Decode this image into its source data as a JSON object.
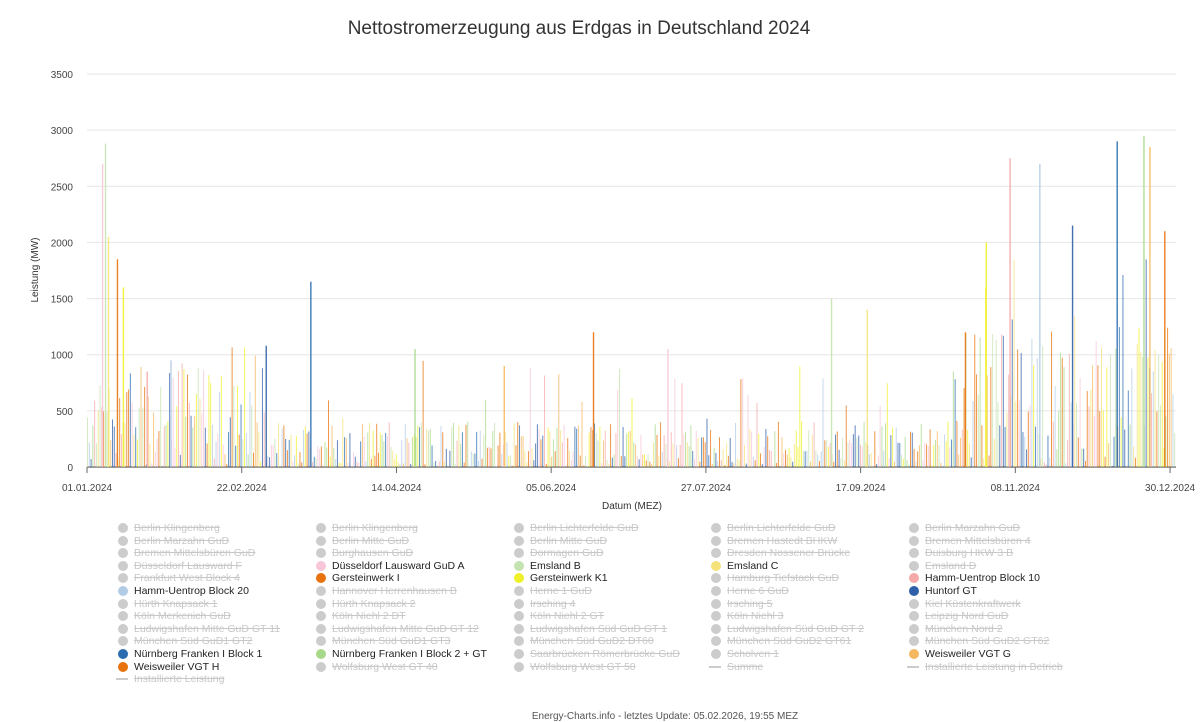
{
  "chart_data": {
    "type": "area",
    "title": "Nettostromerzeugung aus Erdgas in Deutschland 2024",
    "xlabel": "Datum (MEZ)",
    "ylabel": "Leistung (MW)",
    "ylim": [
      0,
      3500
    ],
    "yticks": [
      0,
      500,
      1000,
      1500,
      2000,
      2500,
      3000,
      3500
    ],
    "xlim_day": [
      0,
      366
    ],
    "xticks": [
      {
        "day": 0,
        "label": "01.01.2024"
      },
      {
        "day": 52,
        "label": "22.02.2024"
      },
      {
        "day": 104,
        "label": "14.04.2024"
      },
      {
        "day": 156,
        "label": "05.06.2024"
      },
      {
        "day": 208,
        "label": "27.07.2024"
      },
      {
        "day": 260,
        "label": "17.09.2024"
      },
      {
        "day": 312,
        "label": "08.11.2024"
      },
      {
        "day": 364,
        "label": "30.12.2024"
      }
    ],
    "grid": true,
    "series_colors": {
      "Düsseldorf Lausward GuD A": "#f7c6d9",
      "Emsland B": "#c5e3b0",
      "Emsland C": "#f6e27a",
      "Gersteinwerk I": "#e8730c",
      "Gersteinwerk K1": "#f0f02a",
      "Hamm-Uentrop Block 10": "#f5a9a9",
      "Hamm-Uentrop Block 20": "#b3cce6",
      "Huntorf GT": "#2f5fa8",
      "Nürnberg Franken I Block 1": "#2b6cb0",
      "Nürnberg Franken I Block 2 + GT": "#a8d98a",
      "Weisweiler VGT G": "#f5b860",
      "Weisweiler VGT H": "#e8730c"
    },
    "peaks_total_mw": [
      {
        "day": 5,
        "value": 2700
      },
      {
        "day": 6,
        "value": 2880
      },
      {
        "day": 7,
        "value": 2050
      },
      {
        "day": 10,
        "value": 1850
      },
      {
        "day": 12,
        "value": 1600
      },
      {
        "day": 20,
        "value": 850
      },
      {
        "day": 28,
        "value": 950
      },
      {
        "day": 60,
        "value": 1080
      },
      {
        "day": 75,
        "value": 1650
      },
      {
        "day": 110,
        "value": 1050
      },
      {
        "day": 140,
        "value": 900
      },
      {
        "day": 170,
        "value": 1200
      },
      {
        "day": 195,
        "value": 1050
      },
      {
        "day": 250,
        "value": 1500
      },
      {
        "day": 262,
        "value": 1400
      },
      {
        "day": 295,
        "value": 1200
      },
      {
        "day": 302,
        "value": 2000
      },
      {
        "day": 310,
        "value": 2750
      },
      {
        "day": 320,
        "value": 2700
      },
      {
        "day": 331,
        "value": 2150
      },
      {
        "day": 346,
        "value": 2900
      },
      {
        "day": 355,
        "value": 2950
      },
      {
        "day": 357,
        "value": 2850
      },
      {
        "day": 362,
        "value": 2100
      }
    ]
  },
  "legend": [
    {
      "label": "Berlin Klingenberg",
      "color": "#cccccc",
      "active": false,
      "kind": "dot"
    },
    {
      "label": "Berlin Klingenberg",
      "color": "#cccccc",
      "active": false,
      "kind": "dot"
    },
    {
      "label": "Berlin Lichterfelde GuD",
      "color": "#cccccc",
      "active": false,
      "kind": "dot"
    },
    {
      "label": "Berlin Lichterfelde GuD",
      "color": "#cccccc",
      "active": false,
      "kind": "dot"
    },
    {
      "label": "Berlin Marzahn GuD",
      "color": "#cccccc",
      "active": false,
      "kind": "dot"
    },
    {
      "label": "Berlin Marzahn GuD",
      "color": "#cccccc",
      "active": false,
      "kind": "dot"
    },
    {
      "label": "Berlin Mitte GuD",
      "color": "#cccccc",
      "active": false,
      "kind": "dot"
    },
    {
      "label": "Berlin Mitte GuD",
      "color": "#cccccc",
      "active": false,
      "kind": "dot"
    },
    {
      "label": "Bremen Hastedt BHKW",
      "color": "#cccccc",
      "active": false,
      "kind": "dot"
    },
    {
      "label": "Bremen Mittelsbüren 4",
      "color": "#cccccc",
      "active": false,
      "kind": "dot"
    },
    {
      "label": "Bremen Mittelsbüren GuD",
      "color": "#cccccc",
      "active": false,
      "kind": "dot"
    },
    {
      "label": "Burghausen GuD",
      "color": "#cccccc",
      "active": false,
      "kind": "dot"
    },
    {
      "label": "Dormagen GuD",
      "color": "#cccccc",
      "active": false,
      "kind": "dot"
    },
    {
      "label": "Dresden Nossener Brücke",
      "color": "#cccccc",
      "active": false,
      "kind": "dot"
    },
    {
      "label": "Duisburg HKW 3 B",
      "color": "#cccccc",
      "active": false,
      "kind": "dot"
    },
    {
      "label": "Düsseldorf Lausward F",
      "color": "#cccccc",
      "active": false,
      "kind": "dot"
    },
    {
      "label": "Düsseldorf Lausward GuD A",
      "color": "#f7c6d9",
      "active": true,
      "kind": "dot"
    },
    {
      "label": "Emsland B",
      "color": "#c5e3b0",
      "active": true,
      "kind": "dot"
    },
    {
      "label": "Emsland C",
      "color": "#f6e27a",
      "active": true,
      "kind": "dot"
    },
    {
      "label": "Emsland D",
      "color": "#cccccc",
      "active": false,
      "kind": "dot"
    },
    {
      "label": "Frankfurt West Block 4",
      "color": "#cccccc",
      "active": false,
      "kind": "dot"
    },
    {
      "label": "Gersteinwerk I",
      "color": "#e8730c",
      "active": true,
      "kind": "dot"
    },
    {
      "label": "Gersteinwerk K1",
      "color": "#f0f02a",
      "active": true,
      "kind": "dot"
    },
    {
      "label": "Hamburg Tiefstack GuD",
      "color": "#cccccc",
      "active": false,
      "kind": "dot"
    },
    {
      "label": "Hamm-Uentrop Block 10",
      "color": "#f5a9a9",
      "active": true,
      "kind": "dot"
    },
    {
      "label": "Hamm-Uentrop Block 20",
      "color": "#b3cce6",
      "active": true,
      "kind": "dot"
    },
    {
      "label": "Hannover Herrenhausen B",
      "color": "#cccccc",
      "active": false,
      "kind": "dot"
    },
    {
      "label": "Herne 1 GuD",
      "color": "#cccccc",
      "active": false,
      "kind": "dot"
    },
    {
      "label": "Herne 6 GuD",
      "color": "#cccccc",
      "active": false,
      "kind": "dot"
    },
    {
      "label": "Huntorf GT",
      "color": "#2f5fa8",
      "active": true,
      "kind": "dot"
    },
    {
      "label": "Hürth Knapsack 1",
      "color": "#cccccc",
      "active": false,
      "kind": "dot"
    },
    {
      "label": "Hürth Knapsack 2",
      "color": "#cccccc",
      "active": false,
      "kind": "dot"
    },
    {
      "label": "Irsching 4",
      "color": "#cccccc",
      "active": false,
      "kind": "dot"
    },
    {
      "label": "Irsching 5",
      "color": "#cccccc",
      "active": false,
      "kind": "dot"
    },
    {
      "label": "Kiel Küstenkraftwerk",
      "color": "#cccccc",
      "active": false,
      "kind": "dot"
    },
    {
      "label": "Köln Merkenich GuD",
      "color": "#cccccc",
      "active": false,
      "kind": "dot"
    },
    {
      "label": "Köln Niehl 2 DT",
      "color": "#cccccc",
      "active": false,
      "kind": "dot"
    },
    {
      "label": "Köln Niehl 2 GT",
      "color": "#cccccc",
      "active": false,
      "kind": "dot"
    },
    {
      "label": "Köln Niehl 3",
      "color": "#cccccc",
      "active": false,
      "kind": "dot"
    },
    {
      "label": "Leipzig Nord GuD",
      "color": "#cccccc",
      "active": false,
      "kind": "dot"
    },
    {
      "label": "Ludwigshafen Mitte GuD GT 11",
      "color": "#cccccc",
      "active": false,
      "kind": "dot"
    },
    {
      "label": "Ludwigshafen Mitte GuD GT 12",
      "color": "#cccccc",
      "active": false,
      "kind": "dot"
    },
    {
      "label": "Ludwigshafen Süd GuD GT 1",
      "color": "#cccccc",
      "active": false,
      "kind": "dot"
    },
    {
      "label": "Ludwigshafen Süd GuD GT 2",
      "color": "#cccccc",
      "active": false,
      "kind": "dot"
    },
    {
      "label": "München Nord 2",
      "color": "#cccccc",
      "active": false,
      "kind": "dot"
    },
    {
      "label": "München Süd GuD1 GT2",
      "color": "#cccccc",
      "active": false,
      "kind": "dot"
    },
    {
      "label": "München Süd GuD1 GT3",
      "color": "#cccccc",
      "active": false,
      "kind": "dot"
    },
    {
      "label": "München Süd GuD2 DT60",
      "color": "#cccccc",
      "active": false,
      "kind": "dot"
    },
    {
      "label": "München Süd GuD2 GT61",
      "color": "#cccccc",
      "active": false,
      "kind": "dot"
    },
    {
      "label": "München Süd GuD2 GT62",
      "color": "#cccccc",
      "active": false,
      "kind": "dot"
    },
    {
      "label": "Nürnberg Franken I Block 1",
      "color": "#2b6cb0",
      "active": true,
      "kind": "dot"
    },
    {
      "label": "Nürnberg Franken I Block 2 + GT",
      "color": "#a8d98a",
      "active": true,
      "kind": "dot"
    },
    {
      "label": "Saarbrücken Römerbrücke GuD",
      "color": "#cccccc",
      "active": false,
      "kind": "dot"
    },
    {
      "label": "Scholven 1",
      "color": "#cccccc",
      "active": false,
      "kind": "dot"
    },
    {
      "label": "Weisweiler VGT G",
      "color": "#f5b860",
      "active": true,
      "kind": "dot"
    },
    {
      "label": "Weisweiler VGT H",
      "color": "#e8730c",
      "active": true,
      "kind": "dot"
    },
    {
      "label": "Wolfsburg West GT 40",
      "color": "#cccccc",
      "active": false,
      "kind": "dot"
    },
    {
      "label": "Wolfsburg West GT 50",
      "color": "#cccccc",
      "active": false,
      "kind": "dot"
    },
    {
      "label": "Summe",
      "color": "#cccccc",
      "active": false,
      "kind": "line"
    },
    {
      "label": "Installierte Leistung in Betrieb",
      "color": "#cccccc",
      "active": false,
      "kind": "line"
    },
    {
      "label": "Installierte Leistung",
      "color": "#cccccc",
      "active": false,
      "kind": "line"
    }
  ],
  "footer": "Energy-Charts.info - letztes Update: 05.02.2026, 19:55 MEZ"
}
